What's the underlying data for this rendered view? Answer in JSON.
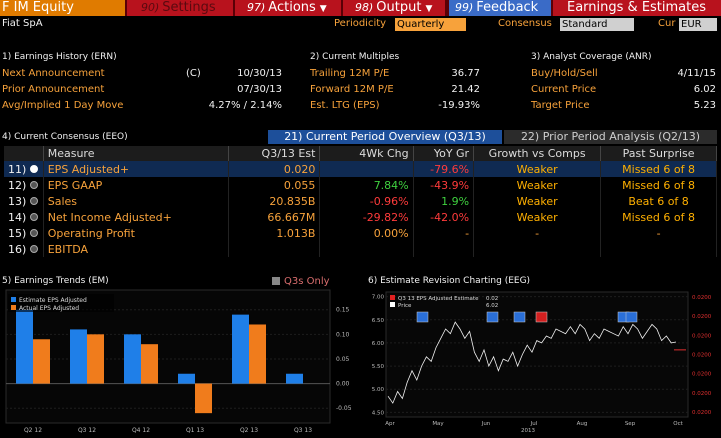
{
  "topbar": {
    "title": "F IM Equity",
    "settings_num": "90)",
    "settings": "Settings",
    "actions_num": "97)",
    "actions": "Actions",
    "output_num": "98)",
    "output": "Output",
    "feedback_num": "99)",
    "feedback": "Feedback",
    "module": "Earnings & Estimates"
  },
  "header": {
    "company": "Fiat SpA",
    "periodicity_label": "Periodicity",
    "periodicity": "Quarterly",
    "consensus_label": "Consensus",
    "consensus": "Standard",
    "cur_label": "Cur",
    "cur": "EUR"
  },
  "earnings_history": {
    "title": "1) Earnings History (ERN)",
    "rows": [
      {
        "label": "Next Announcement",
        "flag": "(C)",
        "value": "10/30/13"
      },
      {
        "label": "Prior Announcement",
        "flag": "",
        "value": "07/30/13"
      },
      {
        "label": "Avg/Implied 1 Day Move",
        "flag": "",
        "value": "4.27% / 2.14%"
      }
    ]
  },
  "current_multiples": {
    "title": "2) Current Multiples",
    "rows": [
      {
        "label": "Trailing 12M P/E",
        "value": "36.77"
      },
      {
        "label": "Forward 12M P/E",
        "value": "21.42"
      },
      {
        "label": "Est. LTG (EPS)",
        "value": "-19.93%"
      }
    ]
  },
  "analyst_coverage": {
    "title": "3) Analyst Coverage (ANR)",
    "rows": [
      {
        "label": "Buy/Hold/Sell",
        "value": "4/11/15"
      },
      {
        "label": "Current Price",
        "value": "6.02"
      },
      {
        "label": "Target Price",
        "value": "5.23"
      }
    ]
  },
  "consensus": {
    "title": "4) Current Consensus (EEO)",
    "tab_current": "21) Current Period Overview (Q3/13)",
    "tab_prior": "22) Prior Period Analysis (Q2/13)",
    "headers": [
      "Measure",
      "Q3/13 Est",
      "4Wk Chg",
      "YoY Gr",
      "Growth vs Comps",
      "Past Surprise"
    ],
    "rows": [
      {
        "num": "11)",
        "measure": "EPS Adjusted+",
        "est": "0.020",
        "chg": "",
        "yoy": "-79.6%",
        "growth": "Weaker",
        "surprise": "Missed 6 of 8"
      },
      {
        "num": "12)",
        "measure": "EPS GAAP",
        "est": "0.055",
        "chg": "7.84%",
        "yoy": "-43.9%",
        "growth": "Weaker",
        "surprise": "Missed 6 of 8"
      },
      {
        "num": "13)",
        "measure": "Sales",
        "est": "20.835B",
        "chg": "-0.96%",
        "yoy": "1.9%",
        "growth": "Weaker",
        "surprise": "Beat 6 of 8"
      },
      {
        "num": "14)",
        "measure": "Net Income Adjusted+",
        "est": "66.667M",
        "chg": "-29.82%",
        "yoy": "-42.0%",
        "growth": "Weaker",
        "surprise": "Missed 6 of 8"
      },
      {
        "num": "15)",
        "measure": "Operating Profit",
        "est": "1.013B",
        "chg": "0.00%",
        "yoy": "-",
        "growth": "-",
        "surprise": "-"
      },
      {
        "num": "16)",
        "measure": "EBITDA",
        "est": "",
        "chg": "",
        "yoy": "",
        "growth": "",
        "surprise": ""
      }
    ]
  },
  "earnings_trends": {
    "title": "5) Earnings Trends (EM)",
    "q3s_only": "Q3s Only"
  },
  "estimate_revision": {
    "title": "6) Estimate Revision Charting (EEG)"
  },
  "chart_data": [
    {
      "type": "bar",
      "categories": [
        "Q2 12",
        "Q3 12",
        "Q4 12",
        "Q1 13",
        "Q2 13",
        "Q3 13"
      ],
      "series": [
        {
          "name": "Estimate EPS Adjusted",
          "values": [
            0.15,
            0.11,
            0.1,
            0.02,
            0.14,
            0.02
          ]
        },
        {
          "name": "Actual EPS Adjusted",
          "values": [
            0.09,
            0.1,
            0.08,
            -0.06,
            0.12,
            null
          ]
        }
      ],
      "colors": [
        "#1f7fe8",
        "#f07c1c"
      ],
      "yticks": [
        -0.05,
        0.0,
        0.05,
        0.1,
        0.15
      ],
      "ylim": [
        -0.08,
        0.19
      ],
      "legend": "top-left"
    },
    {
      "type": "line",
      "x_ticks": [
        "Apr",
        "May",
        "Jun",
        "Jul",
        "Aug",
        "Sep",
        "Oct"
      ],
      "x_year": "2013",
      "left_ticks": [
        "7.00",
        "6.50",
        "6.00",
        "5.50",
        "5.00",
        "4.50"
      ],
      "right_ticks": [
        "0.0200",
        "0.0200",
        "0.0200",
        "0.0200",
        "0.0200",
        "0.0200",
        "0.0200"
      ],
      "legend": [
        {
          "name": "Q3 13 EPS Adjusted Estimate",
          "value": "0.02",
          "color": "#e02020"
        },
        {
          "name": "Price",
          "value": "6.02",
          "color": "#ffffff"
        }
      ],
      "ylim": [
        4.4,
        7.1
      ],
      "price": [
        4.85,
        4.7,
        4.95,
        4.8,
        5.15,
        5.4,
        5.2,
        5.5,
        5.7,
        5.6,
        5.9,
        6.1,
        6.3,
        6.2,
        6.45,
        6.3,
        6.1,
        6.25,
        5.8,
        5.6,
        5.85,
        5.5,
        5.7,
        5.4,
        5.65,
        5.6,
        5.8,
        5.5,
        5.75,
        5.95,
        5.8,
        6.05,
        6.0,
        6.15,
        6.1,
        6.3,
        6.25,
        6.2,
        6.35,
        6.2,
        6.4,
        6.3,
        6.05,
        6.2,
        6.1,
        6.3,
        6.25,
        6.2,
        6.15,
        6.35,
        6.2,
        6.4,
        6.3,
        6.1,
        6.25,
        6.4,
        6.3,
        6.05,
        6.15,
        6.0,
        6.02
      ]
    }
  ]
}
